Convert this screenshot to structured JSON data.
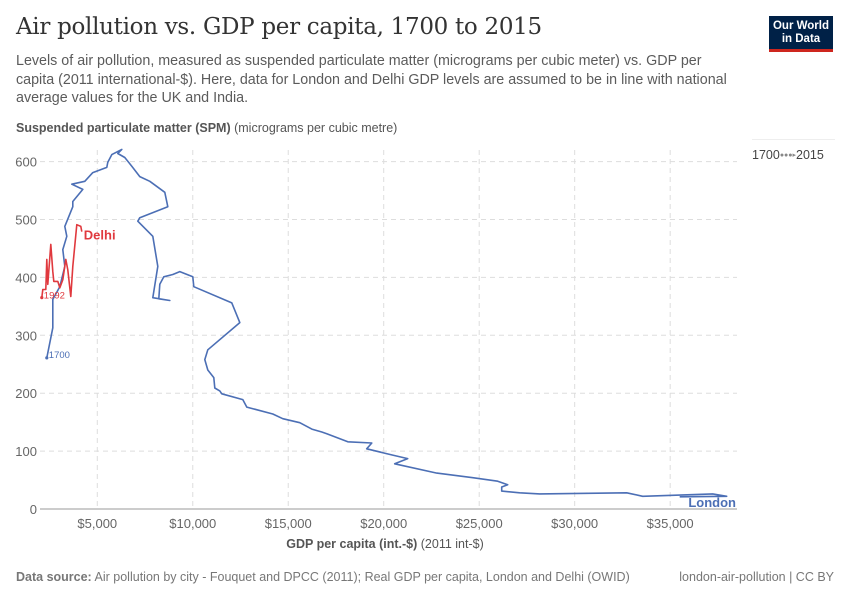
{
  "header": {
    "title": "Air pollution vs. GDP per capita, 1700 to 2015",
    "subtitle": "Levels of air pollution, measured as suspended particulate matter (micrograms per cubic meter) vs. GDP per capita (2011 international-$). Here, data for London and Delhi GDP levels are assumed to be in line with national average values for the UK and India.",
    "logo": "Our World in Data"
  },
  "timeline": {
    "start": "1700",
    "end": "2015",
    "arrow": "●●●▸"
  },
  "footer": {
    "source_label": "Data source:",
    "source_text": "Air pollution by city - Fouquet and DPCC (2011); Real GDP per capita, London and Delhi (OWID)",
    "slug": "london-air-pollution | CC BY"
  },
  "chart_data": {
    "type": "line",
    "title": "Air pollution vs. GDP per capita, 1700 to 2015",
    "ylabel_bold": "Suspended particulate matter (SPM)",
    "ylabel_unit": "(micrograms per cubic metre)",
    "xlabel_bold": "GDP per capita (int.-$)",
    "xlabel_unit": "(2011 int-$)",
    "xlim": [
      2000,
      38500
    ],
    "ylim": [
      0,
      620
    ],
    "xticks": [
      5000,
      10000,
      15000,
      20000,
      25000,
      30000,
      35000
    ],
    "xtick_labels": [
      "$5,000",
      "$10,000",
      "$15,000",
      "$20,000",
      "$25,000",
      "$30,000",
      "$35,000"
    ],
    "yticks": [
      0,
      100,
      200,
      300,
      400,
      500,
      600
    ],
    "ytick_labels": [
      "0",
      "100",
      "200",
      "300",
      "400",
      "500",
      "600"
    ],
    "grid": true,
    "series": [
      {
        "name": "London",
        "color": "#4c6fb5",
        "start_label": "1700",
        "points": [
          [
            2356,
            261
          ],
          [
            2670,
            313
          ],
          [
            2670,
            362
          ],
          [
            3037,
            384
          ],
          [
            3299,
            419
          ],
          [
            3194,
            448
          ],
          [
            3403,
            471
          ],
          [
            3299,
            488
          ],
          [
            3718,
            522
          ],
          [
            3718,
            531
          ],
          [
            4241,
            552
          ],
          [
            3665,
            561
          ],
          [
            4346,
            566
          ],
          [
            4765,
            581
          ],
          [
            5498,
            590
          ],
          [
            5550,
            599
          ],
          [
            5760,
            612
          ],
          [
            6283,
            621
          ],
          [
            6074,
            614
          ],
          [
            6440,
            607
          ],
          [
            6807,
            592
          ],
          [
            7226,
            574
          ],
          [
            7749,
            566
          ],
          [
            8535,
            547
          ],
          [
            8692,
            522
          ],
          [
            7226,
            503
          ],
          [
            7121,
            497
          ],
          [
            7906,
            471
          ],
          [
            8168,
            419
          ],
          [
            7906,
            365
          ],
          [
            8796,
            360
          ],
          [
            8221,
            363
          ],
          [
            8273,
            388
          ],
          [
            8482,
            401
          ],
          [
            8953,
            405
          ],
          [
            9320,
            410
          ],
          [
            10000,
            401
          ],
          [
            10053,
            384
          ],
          [
            12043,
            356
          ],
          [
            12462,
            322
          ],
          [
            10786,
            275
          ],
          [
            10629,
            258
          ],
          [
            10786,
            240
          ],
          [
            11100,
            227
          ],
          [
            11153,
            209
          ],
          [
            11414,
            204
          ],
          [
            11519,
            199
          ],
          [
            12618,
            189
          ],
          [
            12828,
            176
          ],
          [
            14190,
            164
          ],
          [
            14713,
            156
          ],
          [
            15603,
            149
          ],
          [
            16232,
            138
          ],
          [
            16755,
            133
          ],
          [
            17017,
            130
          ],
          [
            18117,
            116
          ],
          [
            19373,
            114
          ],
          [
            19111,
            104
          ],
          [
            20472,
            93
          ],
          [
            21258,
            87
          ],
          [
            20577,
            78
          ],
          [
            22777,
            62
          ],
          [
            24662,
            54
          ],
          [
            25971,
            48
          ],
          [
            26494,
            42
          ],
          [
            26180,
            38
          ],
          [
            26180,
            31
          ],
          [
            27122,
            28
          ],
          [
            28170,
            26
          ],
          [
            32725,
            28
          ],
          [
            33563,
            22
          ],
          [
            35500,
            24
          ],
          [
            37228,
            26
          ],
          [
            37961,
            22
          ],
          [
            35500,
            21
          ]
        ]
      },
      {
        "name": "Delhi",
        "color": "#e0393e",
        "start_label": "1992",
        "points": [
          [
            2094,
            365
          ],
          [
            2147,
            379
          ],
          [
            2304,
            379
          ],
          [
            2356,
            431
          ],
          [
            2408,
            388
          ],
          [
            2566,
            457
          ],
          [
            2670,
            410
          ],
          [
            2723,
            393
          ],
          [
            2932,
            393
          ],
          [
            3037,
            382
          ],
          [
            3194,
            396
          ],
          [
            3351,
            431
          ],
          [
            3456,
            413
          ],
          [
            3613,
            367
          ],
          [
            3718,
            419
          ],
          [
            3927,
            491
          ],
          [
            4137,
            488
          ],
          [
            4189,
            479
          ]
        ]
      }
    ]
  }
}
